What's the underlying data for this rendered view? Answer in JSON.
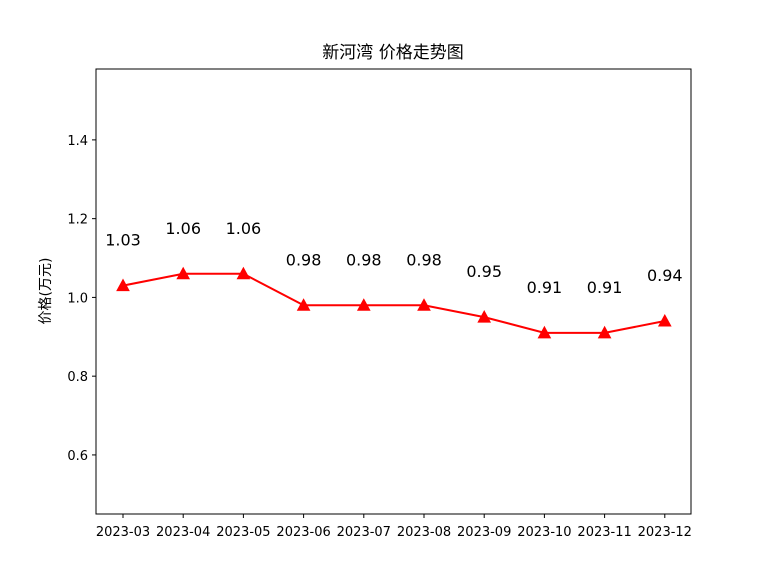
{
  "chart_data": {
    "type": "line",
    "title": "新河湾 价格走势图",
    "xlabel": "",
    "ylabel": "价格(万元)",
    "categories": [
      "2023-03",
      "2023-04",
      "2023-05",
      "2023-06",
      "2023-07",
      "2023-08",
      "2023-09",
      "2023-10",
      "2023-11",
      "2023-12"
    ],
    "series": [
      {
        "values": [
          1.03,
          1.06,
          1.06,
          0.98,
          0.98,
          0.98,
          0.95,
          0.91,
          0.91,
          0.94
        ],
        "labels": [
          "1.03",
          "1.06",
          "1.06",
          "0.98",
          "0.98",
          "0.98",
          "0.95",
          "0.91",
          "0.91",
          "0.94"
        ],
        "color": "#ff0000",
        "marker": "triangle"
      }
    ],
    "ylim": [
      0.45,
      1.58
    ],
    "yticks": [
      0.6,
      0.8,
      1.0,
      1.2,
      1.4
    ],
    "ytick_labels": [
      "0.6",
      "0.8",
      "1.0",
      "1.2",
      "1.4"
    ],
    "grid": false,
    "legend": "none"
  }
}
